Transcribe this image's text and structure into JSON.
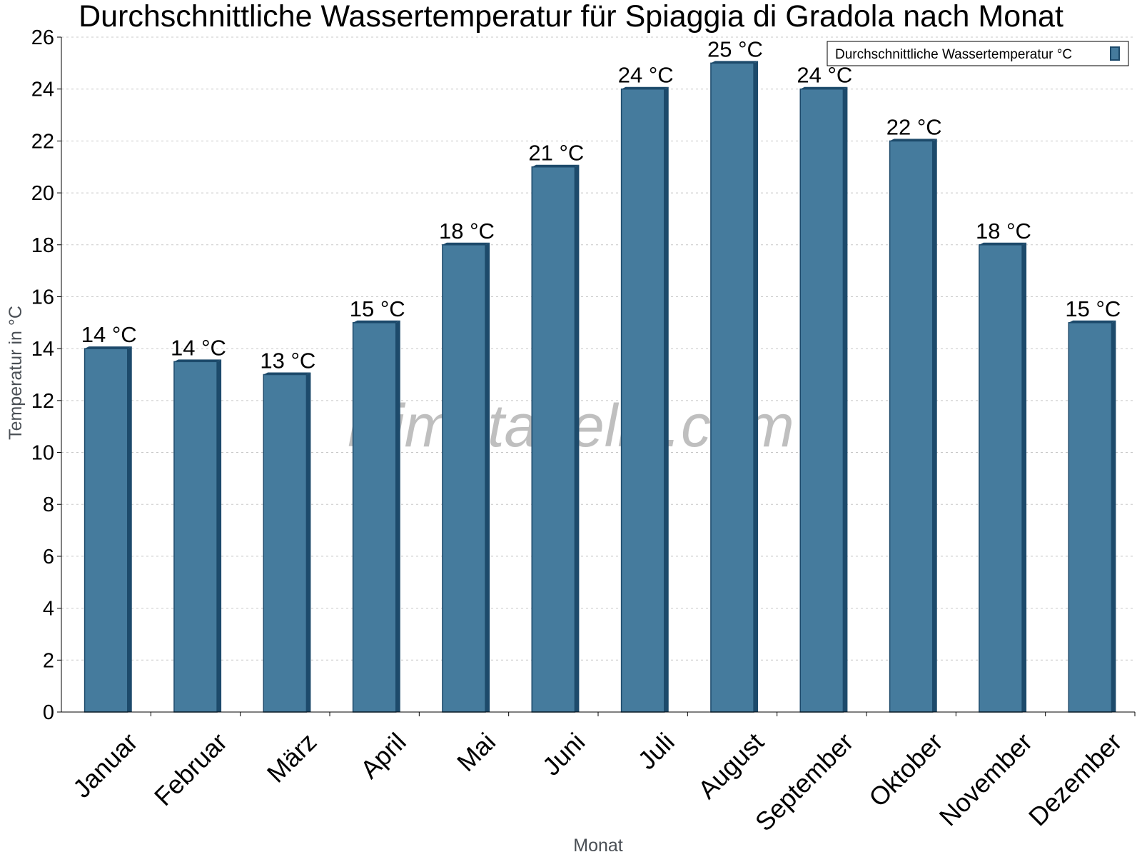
{
  "chart_data": {
    "type": "bar",
    "title": "Durchschnittliche Wassertemperatur für Spiaggia di Gradola nach Monat",
    "xlabel": "Monat",
    "ylabel": "Temperatur in °C",
    "categories": [
      "Januar",
      "Februar",
      "März",
      "April",
      "Mai",
      "Juni",
      "Juli",
      "August",
      "September",
      "Oktober",
      "November",
      "Dezember"
    ],
    "series": [
      {
        "name": "Durchschnittliche Wassertemperatur °C",
        "values": [
          14,
          13.5,
          13,
          15,
          18,
          21,
          24,
          25,
          24,
          22,
          18,
          15
        ],
        "labels": [
          "14 °C",
          "14 °C",
          "13 °C",
          "15 °C",
          "18 °C",
          "21 °C",
          "24 °C",
          "25 °C",
          "24 °C",
          "22 °C",
          "18 °C",
          "15 °C"
        ],
        "color": "#457b9d",
        "edge_color": "#1d4a6b"
      }
    ],
    "ylim": [
      0,
      26
    ],
    "yticks": [
      0,
      2,
      4,
      6,
      8,
      10,
      12,
      14,
      16,
      18,
      20,
      22,
      24,
      26
    ],
    "grid": true,
    "legend": "top-right"
  },
  "watermark": "klimatabelle.com"
}
